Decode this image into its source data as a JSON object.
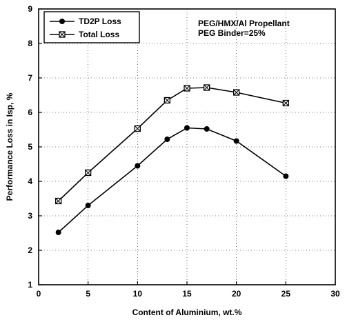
{
  "chart_data": {
    "type": "line",
    "title": "",
    "xlabel": "Content of Aluminium, wt.%",
    "ylabel": "Performance Loss in Isp, %",
    "xlim": [
      0,
      30
    ],
    "ylim": [
      1,
      9
    ],
    "xticks": [
      "0",
      "5",
      "10",
      "15",
      "20",
      "25",
      "30"
    ],
    "yticks": [
      "1",
      "2",
      "3",
      "4",
      "5",
      "6",
      "7",
      "8",
      "9"
    ],
    "grid": true,
    "legend_position": "top-left",
    "annotations": [
      "PEG/HMX/Al Propellant",
      "PEG Binder=25%"
    ],
    "series": [
      {
        "name": "TD2P Loss",
        "marker": "filled-circle",
        "x": [
          2,
          5,
          10,
          13,
          15,
          17,
          20,
          25
        ],
        "y": [
          2.52,
          3.3,
          4.45,
          5.22,
          5.55,
          5.52,
          5.17,
          4.15
        ]
      },
      {
        "name": "Total Loss",
        "marker": "crossed-square",
        "x": [
          2,
          5,
          10,
          13,
          15,
          17,
          20,
          25
        ],
        "y": [
          3.43,
          4.25,
          5.53,
          6.35,
          6.7,
          6.72,
          6.58,
          6.27
        ]
      }
    ]
  }
}
